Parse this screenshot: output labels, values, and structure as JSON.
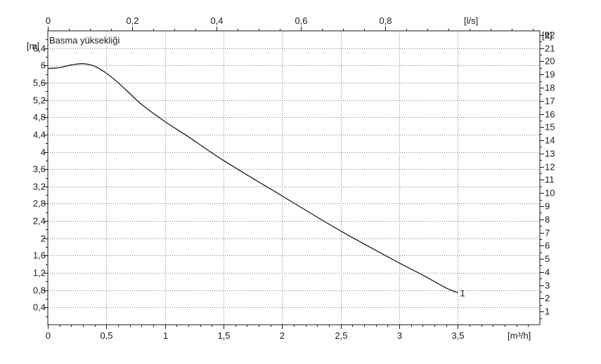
{
  "chart_data": {
    "type": "line",
    "title": "Basma yüksekliği",
    "grid": true,
    "colors": {
      "line": "#1a1a1a",
      "grid": "#7a7a7a",
      "axis": "#1a1a1a"
    },
    "x_bottom": {
      "unit": "[m³/h]",
      "range": [
        0,
        4.2
      ],
      "ticks": [
        0,
        0.5,
        1,
        1.5,
        2,
        2.5,
        3,
        3.5
      ],
      "tick_labels": [
        "0",
        "0,5",
        "1",
        "1,5",
        "2",
        "2,5",
        "3",
        "3,5"
      ]
    },
    "x_top": {
      "unit": "[l/s]",
      "range": [
        0,
        1.1667
      ],
      "ticks": [
        0,
        0.2,
        0.4,
        0.6,
        0.8
      ],
      "tick_labels": [
        "0",
        "0,2",
        "0,4",
        "0,6",
        "0,8"
      ]
    },
    "y_left": {
      "unit": "[m]",
      "range": [
        0,
        6.8
      ],
      "ticks": [
        0.4,
        0.8,
        1.2,
        1.6,
        2,
        2.4,
        2.8,
        3.2,
        3.6,
        4,
        4.4,
        4.8,
        5.2,
        5.6,
        6,
        6.4
      ],
      "tick_labels": [
        "0,4",
        "0,8",
        "1,2",
        "1,6",
        "2",
        "2,4",
        "2,8",
        "3,2",
        "3,6",
        "4",
        "4,4",
        "4,8",
        "5,2",
        "5,6",
        "6",
        "6,4"
      ]
    },
    "y_right": {
      "unit": "[ft]",
      "range": [
        0,
        22.31
      ],
      "ticks": [
        1,
        2,
        3,
        4,
        5,
        6,
        7,
        8,
        9,
        10,
        11,
        12,
        13,
        14,
        15,
        16,
        17,
        18,
        19,
        20,
        21,
        22
      ],
      "tick_labels": [
        "1",
        "2",
        "3",
        "4",
        "5",
        "6",
        "7",
        "8",
        "9",
        "10",
        "11",
        "12",
        "13",
        "14",
        "15",
        "16",
        "17",
        "18",
        "19",
        "20",
        "21",
        "22"
      ]
    },
    "series": [
      {
        "name": "1",
        "x": [
          0,
          0.1,
          0.2,
          0.3,
          0.4,
          0.5,
          0.6,
          0.7,
          0.8,
          1.0,
          1.2,
          1.5,
          2.0,
          2.5,
          3.0,
          3.2,
          3.4,
          3.5
        ],
        "y": [
          5.93,
          5.95,
          6.01,
          6.04,
          5.98,
          5.82,
          5.6,
          5.35,
          5.1,
          4.7,
          4.35,
          3.8,
          2.98,
          2.17,
          1.43,
          1.15,
          0.85,
          0.74
        ]
      }
    ]
  }
}
